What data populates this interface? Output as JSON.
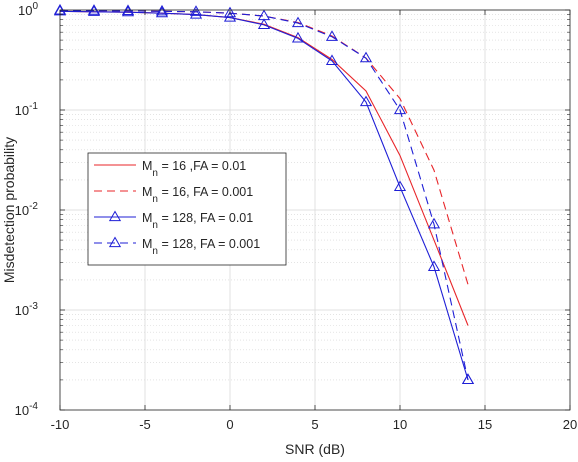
{
  "chart_data": {
    "type": "line",
    "xlabel": "SNR (dB)",
    "ylabel": "Misdetection probability",
    "xlim": [
      -10,
      20
    ],
    "ylim": [
      0.0001,
      1
    ],
    "yscale": "log",
    "grid": true,
    "legend_position": "left-middle",
    "x_ticks": [
      -10,
      -5,
      0,
      5,
      10,
      15,
      20
    ],
    "x_tick_labels": [
      "-10",
      "-5",
      "0",
      "5",
      "10",
      "15",
      "20"
    ],
    "y_ticks": [
      {
        "value": 1,
        "base": "10",
        "exp": "0"
      },
      {
        "value": 0.1,
        "base": "10",
        "exp": "-1"
      },
      {
        "value": 0.01,
        "base": "10",
        "exp": "-2"
      },
      {
        "value": 0.001,
        "base": "10",
        "exp": "-3"
      },
      {
        "value": 0.0001,
        "base": "10",
        "exp": "-4"
      }
    ],
    "series": [
      {
        "legend_main": "M",
        "legend_sub": "n",
        "legend_rest": " = 16 ,FA = 0.01",
        "color": "#e8262a",
        "dash": "solid",
        "marker": "none",
        "x": [
          -10,
          -8,
          -6,
          -4,
          -2,
          0,
          2,
          4,
          6,
          8,
          10,
          12,
          14
        ],
        "y": [
          0.97,
          0.96,
          0.95,
          0.93,
          0.9,
          0.84,
          0.72,
          0.53,
          0.32,
          0.155,
          0.035,
          0.005,
          0.0007
        ]
      },
      {
        "legend_main": "M",
        "legend_sub": "n",
        "legend_rest": " = 16, FA = 0.001",
        "color": "#e8262a",
        "dash": "dashed",
        "marker": "none",
        "x": [
          -10,
          -8,
          -6,
          -4,
          -2,
          0,
          2,
          4,
          6,
          8,
          10,
          12,
          14
        ],
        "y": [
          0.99,
          0.985,
          0.98,
          0.97,
          0.96,
          0.93,
          0.87,
          0.75,
          0.55,
          0.33,
          0.13,
          0.025,
          0.0018
        ]
      },
      {
        "legend_main": "M",
        "legend_sub": "n",
        "legend_rest": " = 128, FA = 0.01",
        "color": "#1f1fd6",
        "dash": "solid",
        "marker": "triangle",
        "x": [
          -10,
          -8,
          -6,
          -4,
          -2,
          0,
          2,
          4,
          6,
          8,
          10,
          12,
          14
        ],
        "y": [
          0.97,
          0.96,
          0.95,
          0.93,
          0.9,
          0.84,
          0.71,
          0.52,
          0.31,
          0.12,
          0.017,
          0.0027,
          0.0002
        ]
      },
      {
        "legend_main": "M",
        "legend_sub": "n",
        "legend_rest": " = 128, FA = 0.001",
        "color": "#1f1fd6",
        "dash": "dashed",
        "marker": "triangle",
        "x": [
          -10,
          -8,
          -6,
          -4,
          -2,
          0,
          2,
          4,
          6,
          8,
          10,
          12,
          14
        ],
        "y": [
          0.99,
          0.985,
          0.98,
          0.97,
          0.96,
          0.93,
          0.87,
          0.74,
          0.54,
          0.33,
          0.1,
          0.0072,
          0.0002
        ]
      }
    ]
  }
}
